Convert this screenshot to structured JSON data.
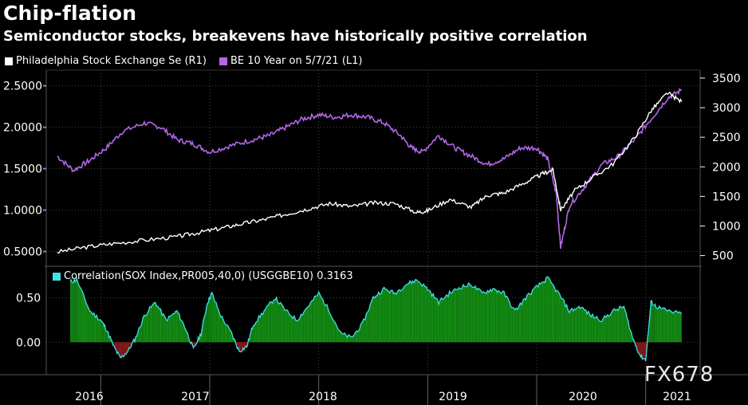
{
  "header": {
    "title": "Chip-flation",
    "subtitle": "Semiconductor stocks, breakevens have historically positive correlation"
  },
  "legend": {
    "sox_label": "Philadelphia Stock Exchange Se (R1)",
    "be_label": "BE 10 Year on 5/7/21 (L1)"
  },
  "correlation_legend": {
    "label": "Correlation(SOX Index,PR005,40,0) (USGGBE10) 0.3163"
  },
  "watermark": "FX678",
  "colors": {
    "background": "#000000",
    "sox": "#ffffff",
    "be": "#b266e6",
    "corr_line": "#3fe0ea",
    "corr_pos": "#138a13",
    "corr_neg": "#8a1a1a"
  },
  "chart_data": [
    {
      "type": "line",
      "title": "Chip-flation",
      "subtitle": "Semiconductor stocks, breakevens have historically positive correlation",
      "x_ticks": [
        "2016",
        "2017",
        "2018",
        "2019",
        "2020",
        "2021"
      ],
      "left_axis": {
        "ticks": [
          "0.5000",
          "1.0000",
          "1.5000",
          "2.0000",
          "2.5000"
        ],
        "range": [
          0.38,
          2.65
        ]
      },
      "right_axis": {
        "ticks": [
          "500",
          "1000",
          "1500",
          "2000",
          "2500",
          "3000",
          "3500"
        ],
        "range": [
          400,
          3580
        ]
      },
      "grid": true,
      "legend_position": "top-left",
      "series": [
        {
          "name": "Philadelphia Stock Exchange Se (R1)",
          "axis": "right",
          "x": [
            2015.6,
            2015.85,
            2016.1,
            2016.4,
            2016.7,
            2016.9,
            2017.1,
            2017.3,
            2017.5,
            2017.7,
            2017.9,
            2018.1,
            2018.3,
            2018.5,
            2018.7,
            2018.9,
            2019.0,
            2019.2,
            2019.4,
            2019.55,
            2019.7,
            2019.9,
            2020.05,
            2020.15,
            2020.22,
            2020.35,
            2020.5,
            2020.7,
            2020.9,
            2021.05,
            2021.2,
            2021.33
          ],
          "values": [
            560,
            640,
            700,
            760,
            820,
            890,
            960,
            1040,
            1110,
            1200,
            1290,
            1380,
            1330,
            1390,
            1380,
            1230,
            1260,
            1450,
            1320,
            1520,
            1560,
            1740,
            1880,
            1950,
            1270,
            1600,
            1800,
            2050,
            2500,
            2950,
            3250,
            3100
          ]
        },
        {
          "name": "BE 10 Year on 5/7/21 (L1)",
          "axis": "left",
          "x": [
            2015.6,
            2015.75,
            2015.9,
            2016.05,
            2016.2,
            2016.4,
            2016.55,
            2016.7,
            2016.85,
            2017.0,
            2017.2,
            2017.4,
            2017.55,
            2017.7,
            2017.85,
            2018.0,
            2018.15,
            2018.3,
            2018.45,
            2018.6,
            2018.75,
            2018.85,
            2018.95,
            2019.1,
            2019.25,
            2019.4,
            2019.55,
            2019.7,
            2019.85,
            2020.0,
            2020.1,
            2020.18,
            2020.22,
            2020.3,
            2020.45,
            2020.6,
            2020.75,
            2020.9,
            2021.05,
            2021.2,
            2021.33
          ],
          "values": [
            1.65,
            1.48,
            1.6,
            1.75,
            1.95,
            2.05,
            2.0,
            1.85,
            1.8,
            1.7,
            1.78,
            1.85,
            1.9,
            2.0,
            2.1,
            2.15,
            2.12,
            2.15,
            2.12,
            2.05,
            1.9,
            1.75,
            1.7,
            1.9,
            1.75,
            1.65,
            1.55,
            1.62,
            1.75,
            1.75,
            1.62,
            1.2,
            0.55,
            1.05,
            1.3,
            1.55,
            1.65,
            1.85,
            2.1,
            2.35,
            2.45
          ]
        }
      ]
    },
    {
      "type": "area",
      "title": "Correlation(SOX Index,PR005,40,0) (USGGBE10) 0.3163",
      "y_ticks": [
        "0.00",
        "0.50"
      ],
      "y_range": [
        -0.32,
        0.8
      ],
      "grid": true,
      "series": [
        {
          "name": "Correlation(SOX Index,PR005,40,0) (USGGBE10)",
          "x": [
            2015.72,
            2015.78,
            2015.9,
            2016.0,
            2016.05,
            2016.12,
            2016.18,
            2016.25,
            2016.32,
            2016.4,
            2016.5,
            2016.6,
            2016.7,
            2016.78,
            2016.85,
            2016.92,
            2016.98,
            2017.02,
            2017.1,
            2017.2,
            2017.27,
            2017.34,
            2017.4,
            2017.5,
            2017.6,
            2017.7,
            2017.8,
            2017.9,
            2018.0,
            2018.1,
            2018.2,
            2018.3,
            2018.4,
            2018.5,
            2018.6,
            2018.7,
            2018.8,
            2018.9,
            2019.0,
            2019.1,
            2019.2,
            2019.3,
            2019.4,
            2019.5,
            2019.6,
            2019.7,
            2019.8,
            2019.9,
            2020.0,
            2020.1,
            2020.2,
            2020.3,
            2020.4,
            2020.5,
            2020.6,
            2020.7,
            2020.8,
            2020.88,
            2020.95,
            2021.0,
            2021.05,
            2021.1,
            2021.2,
            2021.33
          ],
          "values": [
            0.68,
            0.7,
            0.35,
            0.25,
            0.15,
            -0.05,
            -0.18,
            -0.1,
            0.05,
            0.3,
            0.45,
            0.25,
            0.35,
            0.15,
            -0.08,
            0.1,
            0.45,
            0.55,
            0.3,
            0.1,
            -0.1,
            -0.05,
            0.2,
            0.35,
            0.5,
            0.35,
            0.25,
            0.4,
            0.55,
            0.35,
            0.1,
            0.05,
            0.2,
            0.5,
            0.6,
            0.55,
            0.65,
            0.7,
            0.6,
            0.45,
            0.55,
            0.62,
            0.65,
            0.55,
            0.6,
            0.55,
            0.35,
            0.5,
            0.62,
            0.72,
            0.55,
            0.35,
            0.4,
            0.3,
            0.25,
            0.35,
            0.4,
            0.05,
            -0.15,
            -0.2,
            0.45,
            0.4,
            0.35,
            0.32
          ]
        }
      ]
    }
  ]
}
